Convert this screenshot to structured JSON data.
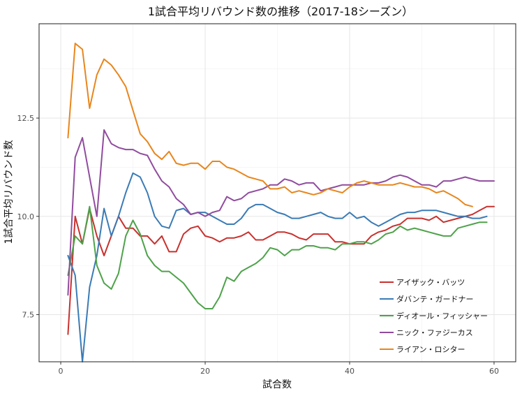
{
  "chart_data": {
    "type": "line",
    "title": "1試合平均リバウンド数の推移（2017-18シーズン）",
    "xlabel": "試合数",
    "ylabel": "1試合平均リバウンド数",
    "xlim": [
      -3,
      63
    ],
    "ylim": [
      6.3,
      14.9
    ],
    "xticks": [
      0,
      20,
      40,
      60
    ],
    "yticks": [
      7.5,
      10.0,
      12.5
    ],
    "ytick_labels": [
      "7.5",
      "10.0",
      "12.5"
    ],
    "grid": true,
    "legend_position": "bottom-right",
    "series": [
      {
        "name": "アイザック・バッツ",
        "color": "#C8312E",
        "points": [
          [
            1,
            7
          ],
          [
            2,
            10
          ],
          [
            3,
            9.3
          ],
          [
            4,
            10.2
          ],
          [
            5,
            9.5
          ],
          [
            6,
            9
          ],
          [
            7,
            9.5
          ],
          [
            8,
            10
          ],
          [
            9,
            9.7
          ],
          [
            10,
            9.7
          ],
          [
            11,
            9.5
          ],
          [
            12,
            9.5
          ],
          [
            13,
            9.3
          ],
          [
            14,
            9.5
          ],
          [
            15,
            9.1
          ],
          [
            16,
            9.1
          ],
          [
            17,
            9.55
          ],
          [
            18,
            9.7
          ],
          [
            19,
            9.75
          ],
          [
            20,
            9.5
          ],
          [
            21,
            9.45
          ],
          [
            22,
            9.35
          ],
          [
            23,
            9.45
          ],
          [
            24,
            9.45
          ],
          [
            25,
            9.5
          ],
          [
            26,
            9.6
          ],
          [
            27,
            9.4
          ],
          [
            28,
            9.4
          ],
          [
            29,
            9.5
          ],
          [
            30,
            9.6
          ],
          [
            31,
            9.6
          ],
          [
            32,
            9.55
          ],
          [
            33,
            9.45
          ],
          [
            34,
            9.4
          ],
          [
            35,
            9.55
          ],
          [
            36,
            9.55
          ],
          [
            37,
            9.55
          ],
          [
            38,
            9.35
          ],
          [
            39,
            9.35
          ],
          [
            40,
            9.3
          ],
          [
            41,
            9.3
          ],
          [
            42,
            9.3
          ],
          [
            43,
            9.5
          ],
          [
            44,
            9.6
          ],
          [
            45,
            9.65
          ],
          [
            46,
            9.75
          ],
          [
            47,
            9.8
          ],
          [
            48,
            9.95
          ],
          [
            49,
            9.95
          ],
          [
            50,
            9.95
          ],
          [
            51,
            9.9
          ],
          [
            52,
            10.0
          ],
          [
            53,
            9.85
          ],
          [
            54,
            9.9
          ],
          [
            55,
            9.95
          ],
          [
            56,
            10.0
          ],
          [
            57,
            10.05
          ],
          [
            58,
            10.15
          ],
          [
            59,
            10.25
          ],
          [
            60,
            10.25
          ]
        ]
      },
      {
        "name": "ダバンテ・ガードナー",
        "color": "#3A7BB5",
        "points": [
          [
            1,
            9
          ],
          [
            2,
            8.5
          ],
          [
            3,
            6.3
          ],
          [
            4,
            8.2
          ],
          [
            5,
            9
          ],
          [
            6,
            10.2
          ],
          [
            7,
            9.5
          ],
          [
            8,
            10
          ],
          [
            9,
            10.6
          ],
          [
            10,
            11.1
          ],
          [
            11,
            11
          ],
          [
            12,
            10.6
          ],
          [
            13,
            10
          ],
          [
            14,
            9.75
          ],
          [
            15,
            9.7
          ],
          [
            16,
            10.15
          ],
          [
            17,
            10.2
          ],
          [
            18,
            10.05
          ],
          [
            19,
            10.1
          ],
          [
            20,
            10.1
          ],
          [
            21,
            10.0
          ],
          [
            22,
            9.9
          ],
          [
            23,
            9.8
          ],
          [
            24,
            9.8
          ],
          [
            25,
            9.95
          ],
          [
            26,
            10.2
          ],
          [
            27,
            10.3
          ],
          [
            28,
            10.3
          ],
          [
            29,
            10.2
          ],
          [
            30,
            10.1
          ],
          [
            31,
            10.05
          ],
          [
            32,
            9.95
          ],
          [
            33,
            9.95
          ],
          [
            34,
            10.0
          ],
          [
            35,
            10.05
          ],
          [
            36,
            10.1
          ],
          [
            37,
            10.0
          ],
          [
            38,
            9.95
          ],
          [
            39,
            9.95
          ],
          [
            40,
            10.1
          ],
          [
            41,
            9.95
          ],
          [
            42,
            10.0
          ],
          [
            43,
            9.85
          ],
          [
            44,
            9.75
          ],
          [
            45,
            9.85
          ],
          [
            46,
            9.95
          ],
          [
            47,
            10.05
          ],
          [
            48,
            10.1
          ],
          [
            49,
            10.1
          ],
          [
            50,
            10.15
          ],
          [
            51,
            10.15
          ],
          [
            52,
            10.15
          ],
          [
            53,
            10.1
          ],
          [
            54,
            10.05
          ],
          [
            55,
            10.0
          ],
          [
            56,
            10.0
          ],
          [
            57,
            9.95
          ],
          [
            58,
            9.95
          ],
          [
            59,
            10.0
          ]
        ]
      },
      {
        "name": "ディオール・フィッシャー",
        "color": "#4EA24A",
        "points": [
          [
            1,
            8.5
          ],
          [
            2,
            9.5
          ],
          [
            3,
            9.3
          ],
          [
            4,
            10.25
          ],
          [
            5,
            8.75
          ],
          [
            6,
            8.3
          ],
          [
            7,
            8.15
          ],
          [
            8,
            8.55
          ],
          [
            9,
            9.5
          ],
          [
            10,
            9.9
          ],
          [
            11,
            9.55
          ],
          [
            12,
            9
          ],
          [
            13,
            8.75
          ],
          [
            14,
            8.6
          ],
          [
            15,
            8.6
          ],
          [
            16,
            8.45
          ],
          [
            17,
            8.3
          ],
          [
            18,
            8.05
          ],
          [
            19,
            7.8
          ],
          [
            20,
            7.65
          ],
          [
            21,
            7.65
          ],
          [
            22,
            7.95
          ],
          [
            23,
            8.45
          ],
          [
            24,
            8.35
          ],
          [
            25,
            8.6
          ],
          [
            26,
            8.7
          ],
          [
            27,
            8.8
          ],
          [
            28,
            8.95
          ],
          [
            29,
            9.2
          ],
          [
            30,
            9.15
          ],
          [
            31,
            9.0
          ],
          [
            32,
            9.15
          ],
          [
            33,
            9.15
          ],
          [
            34,
            9.25
          ],
          [
            35,
            9.25
          ],
          [
            36,
            9.2
          ],
          [
            37,
            9.2
          ],
          [
            38,
            9.15
          ],
          [
            39,
            9.3
          ],
          [
            40,
            9.3
          ],
          [
            41,
            9.35
          ],
          [
            42,
            9.35
          ],
          [
            43,
            9.3
          ],
          [
            44,
            9.4
          ],
          [
            45,
            9.55
          ],
          [
            46,
            9.6
          ],
          [
            47,
            9.75
          ],
          [
            48,
            9.65
          ],
          [
            49,
            9.7
          ],
          [
            50,
            9.65
          ],
          [
            51,
            9.6
          ],
          [
            52,
            9.55
          ],
          [
            53,
            9.5
          ],
          [
            54,
            9.5
          ],
          [
            55,
            9.7
          ],
          [
            56,
            9.75
          ],
          [
            57,
            9.8
          ],
          [
            58,
            9.85
          ],
          [
            59,
            9.85
          ]
        ]
      },
      {
        "name": "ニック・ファジーカス",
        "color": "#904C9E",
        "points": [
          [
            1,
            8
          ],
          [
            2,
            11.5
          ],
          [
            3,
            12
          ],
          [
            4,
            11
          ],
          [
            5,
            10
          ],
          [
            6,
            12.2
          ],
          [
            7,
            11.85
          ],
          [
            8,
            11.75
          ],
          [
            9,
            11.7
          ],
          [
            10,
            11.7
          ],
          [
            11,
            11.6
          ],
          [
            12,
            11.55
          ],
          [
            13,
            11.2
          ],
          [
            14,
            10.9
          ],
          [
            15,
            10.75
          ],
          [
            16,
            10.45
          ],
          [
            17,
            10.3
          ],
          [
            18,
            10.05
          ],
          [
            19,
            10.1
          ],
          [
            20,
            10.0
          ],
          [
            21,
            10.1
          ],
          [
            22,
            10.15
          ],
          [
            23,
            10.5
          ],
          [
            24,
            10.4
          ],
          [
            25,
            10.45
          ],
          [
            26,
            10.6
          ],
          [
            27,
            10.65
          ],
          [
            28,
            10.7
          ],
          [
            29,
            10.8
          ],
          [
            30,
            10.8
          ],
          [
            31,
            10.95
          ],
          [
            32,
            10.9
          ],
          [
            33,
            10.8
          ],
          [
            34,
            10.85
          ],
          [
            35,
            10.85
          ],
          [
            36,
            10.65
          ],
          [
            37,
            10.7
          ],
          [
            38,
            10.75
          ],
          [
            39,
            10.8
          ],
          [
            40,
            10.8
          ],
          [
            41,
            10.8
          ],
          [
            42,
            10.8
          ],
          [
            43,
            10.85
          ],
          [
            44,
            10.85
          ],
          [
            45,
            10.9
          ],
          [
            46,
            11.0
          ],
          [
            47,
            11.05
          ],
          [
            48,
            11.0
          ],
          [
            49,
            10.9
          ],
          [
            50,
            10.8
          ],
          [
            51,
            10.8
          ],
          [
            52,
            10.75
          ],
          [
            53,
            10.9
          ],
          [
            54,
            10.9
          ],
          [
            55,
            10.95
          ],
          [
            56,
            11.0
          ],
          [
            57,
            10.95
          ],
          [
            58,
            10.9
          ],
          [
            59,
            10.9
          ],
          [
            60,
            10.9
          ]
        ]
      },
      {
        "name": "ライアン・ロシター",
        "color": "#E8861D",
        "points": [
          [
            1,
            12
          ],
          [
            2,
            14.4
          ],
          [
            3,
            14.25
          ],
          [
            4,
            12.75
          ],
          [
            5,
            13.6
          ],
          [
            6,
            14
          ],
          [
            7,
            13.85
          ],
          [
            8,
            13.6
          ],
          [
            9,
            13.3
          ],
          [
            10,
            12.7
          ],
          [
            11,
            12.1
          ],
          [
            12,
            11.9
          ],
          [
            13,
            11.6
          ],
          [
            14,
            11.45
          ],
          [
            15,
            11.65
          ],
          [
            16,
            11.35
          ],
          [
            17,
            11.3
          ],
          [
            18,
            11.35
          ],
          [
            19,
            11.35
          ],
          [
            20,
            11.2
          ],
          [
            21,
            11.4
          ],
          [
            22,
            11.4
          ],
          [
            23,
            11.25
          ],
          [
            24,
            11.2
          ],
          [
            25,
            11.1
          ],
          [
            26,
            11.0
          ],
          [
            27,
            10.95
          ],
          [
            28,
            10.9
          ],
          [
            29,
            10.7
          ],
          [
            30,
            10.7
          ],
          [
            31,
            10.75
          ],
          [
            32,
            10.6
          ],
          [
            33,
            10.65
          ],
          [
            34,
            10.6
          ],
          [
            35,
            10.55
          ],
          [
            36,
            10.6
          ],
          [
            37,
            10.7
          ],
          [
            38,
            10.65
          ],
          [
            39,
            10.6
          ],
          [
            40,
            10.75
          ],
          [
            41,
            10.85
          ],
          [
            42,
            10.9
          ],
          [
            43,
            10.85
          ],
          [
            44,
            10.8
          ],
          [
            45,
            10.8
          ],
          [
            46,
            10.8
          ],
          [
            47,
            10.85
          ],
          [
            48,
            10.8
          ],
          [
            49,
            10.75
          ],
          [
            50,
            10.75
          ],
          [
            51,
            10.7
          ],
          [
            52,
            10.6
          ],
          [
            53,
            10.65
          ],
          [
            54,
            10.55
          ],
          [
            55,
            10.45
          ],
          [
            56,
            10.3
          ],
          [
            57,
            10.25
          ]
        ]
      }
    ]
  }
}
